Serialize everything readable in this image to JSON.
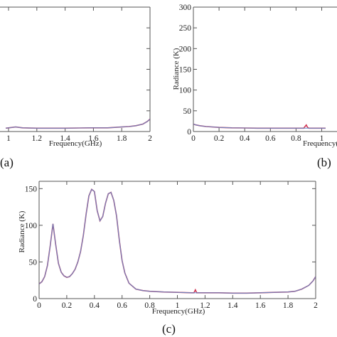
{
  "chart_data": [
    {
      "panel_label": "(a)",
      "type": "line",
      "xlabel": "Frequency(GHz)",
      "ylabel": "",
      "xlim": [
        0,
        2
      ],
      "ylim": [
        0,
        300
      ],
      "x_ticks": [
        "1",
        "1.2",
        "1.4",
        "1.6",
        "1.8",
        "2"
      ],
      "x_tick_values": [
        1,
        1.2,
        1.4,
        1.6,
        1.8,
        2
      ],
      "visible_x_range": [
        0.985,
        2
      ],
      "series": [
        {
          "color": "#cc2244",
          "x": [
            0.98,
            1.0,
            1.05,
            1.1,
            1.2,
            1.3,
            1.4,
            1.5,
            1.6,
            1.7,
            1.8,
            1.85,
            1.9,
            1.95,
            1.98,
            2.0
          ],
          "y": [
            8,
            9,
            11,
            9,
            8,
            8,
            8,
            8.5,
            9,
            9,
            11,
            12,
            14,
            18,
            24,
            30
          ]
        },
        {
          "color": "#5b8fd0",
          "x": [
            0.98,
            1.0,
            1.05,
            1.1,
            1.2,
            1.3,
            1.4,
            1.5,
            1.6,
            1.7,
            1.8,
            1.85,
            1.9,
            1.95,
            1.98,
            2.0
          ],
          "y": [
            8,
            9,
            11,
            9,
            8,
            8,
            8,
            8.5,
            9,
            9,
            11,
            12,
            14,
            18,
            24,
            30
          ]
        }
      ]
    },
    {
      "panel_label": "(b)",
      "type": "line",
      "xlabel": "Frequency(GHz)",
      "ylabel": "Radiance (K)",
      "xlim": [
        0,
        2
      ],
      "ylim": [
        0,
        300
      ],
      "x_ticks": [
        "0",
        "0.2",
        "0.4",
        "0.6",
        "0.8",
        "1"
      ],
      "x_tick_values": [
        0,
        0.2,
        0.4,
        0.6,
        0.8,
        1.0
      ],
      "y_ticks": [
        "0",
        "50",
        "100",
        "150",
        "200",
        "250",
        "300"
      ],
      "y_tick_values": [
        0,
        50,
        100,
        150,
        200,
        250,
        300
      ],
      "visible_x_range": [
        0,
        1.03
      ],
      "series": [
        {
          "color": "#cc2244",
          "x": [
            0,
            0.02,
            0.05,
            0.1,
            0.2,
            0.3,
            0.4,
            0.5,
            0.6,
            0.7,
            0.8,
            0.86,
            0.87,
            0.88,
            0.89,
            0.9,
            1.0,
            1.03
          ],
          "y": [
            18,
            16,
            14,
            12,
            10,
            9,
            8.5,
            8,
            8,
            8,
            8,
            8,
            12,
            16,
            10,
            8,
            8,
            8
          ]
        },
        {
          "color": "#5b8fd0",
          "x": [
            0,
            0.02,
            0.05,
            0.1,
            0.2,
            0.3,
            0.4,
            0.5,
            0.6,
            0.7,
            0.8,
            0.9,
            1.0,
            1.03
          ],
          "y": [
            18,
            16,
            14,
            12,
            10,
            9,
            8.5,
            8,
            8,
            8,
            8,
            8,
            8,
            8
          ]
        }
      ]
    },
    {
      "panel_label": "(c)",
      "type": "line",
      "xlabel": "Frequency(GHz)",
      "ylabel": "Radiance (K)",
      "xlim": [
        0,
        2
      ],
      "ylim": [
        0,
        160
      ],
      "x_ticks": [
        "0",
        "0.2",
        "0.4",
        "0.6",
        "0.8",
        "1",
        "1.2",
        "1.4",
        "1.6",
        "1.8",
        "2"
      ],
      "x_tick_values": [
        0,
        0.2,
        0.4,
        0.6,
        0.8,
        1.0,
        1.2,
        1.4,
        1.6,
        1.8,
        2.0
      ],
      "y_ticks": [
        "0",
        "50",
        "100",
        "150"
      ],
      "y_tick_values": [
        0,
        50,
        100,
        150
      ],
      "series": [
        {
          "color": "#cc2244",
          "x": [
            0,
            0.02,
            0.04,
            0.06,
            0.08,
            0.1,
            0.12,
            0.14,
            0.16,
            0.18,
            0.2,
            0.22,
            0.24,
            0.26,
            0.28,
            0.3,
            0.32,
            0.34,
            0.36,
            0.38,
            0.4,
            0.42,
            0.44,
            0.46,
            0.48,
            0.5,
            0.52,
            0.54,
            0.56,
            0.58,
            0.6,
            0.62,
            0.65,
            0.7,
            0.75,
            0.8,
            0.9,
            1.0,
            1.1,
            1.12,
            1.13,
            1.14,
            1.2,
            1.3,
            1.4,
            1.5,
            1.6,
            1.7,
            1.8,
            1.85,
            1.9,
            1.95,
            1.98,
            2.0
          ],
          "y": [
            20,
            23,
            30,
            45,
            72,
            102,
            74,
            48,
            36,
            31,
            29,
            30,
            34,
            40,
            50,
            64,
            86,
            115,
            140,
            149,
            146,
            120,
            106,
            112,
            130,
            143,
            145,
            134,
            113,
            80,
            52,
            35,
            21,
            13,
            11,
            10,
            9,
            8.5,
            8,
            8,
            12,
            8,
            8,
            8,
            7.5,
            7.5,
            8,
            8.5,
            9,
            10,
            13,
            18,
            24,
            30
          ]
        },
        {
          "color": "#5b8fd0",
          "x": [
            0,
            0.02,
            0.04,
            0.06,
            0.08,
            0.1,
            0.12,
            0.14,
            0.16,
            0.18,
            0.2,
            0.22,
            0.24,
            0.26,
            0.28,
            0.3,
            0.32,
            0.34,
            0.36,
            0.38,
            0.4,
            0.42,
            0.44,
            0.46,
            0.48,
            0.5,
            0.52,
            0.54,
            0.56,
            0.58,
            0.6,
            0.62,
            0.65,
            0.7,
            0.75,
            0.8,
            0.9,
            1.0,
            1.1,
            1.2,
            1.3,
            1.4,
            1.5,
            1.6,
            1.7,
            1.8,
            1.85,
            1.9,
            1.95,
            1.98,
            2.0
          ],
          "y": [
            20,
            23,
            30,
            45,
            72,
            102,
            74,
            48,
            36,
            31,
            29,
            30,
            34,
            40,
            50,
            64,
            86,
            115,
            140,
            149,
            146,
            120,
            106,
            112,
            130,
            143,
            145,
            134,
            113,
            80,
            52,
            35,
            21,
            13,
            11,
            10,
            9,
            8.5,
            8,
            8,
            8,
            7.5,
            7.5,
            8,
            8.5,
            9,
            10,
            13,
            18,
            24,
            30
          ]
        }
      ]
    }
  ]
}
